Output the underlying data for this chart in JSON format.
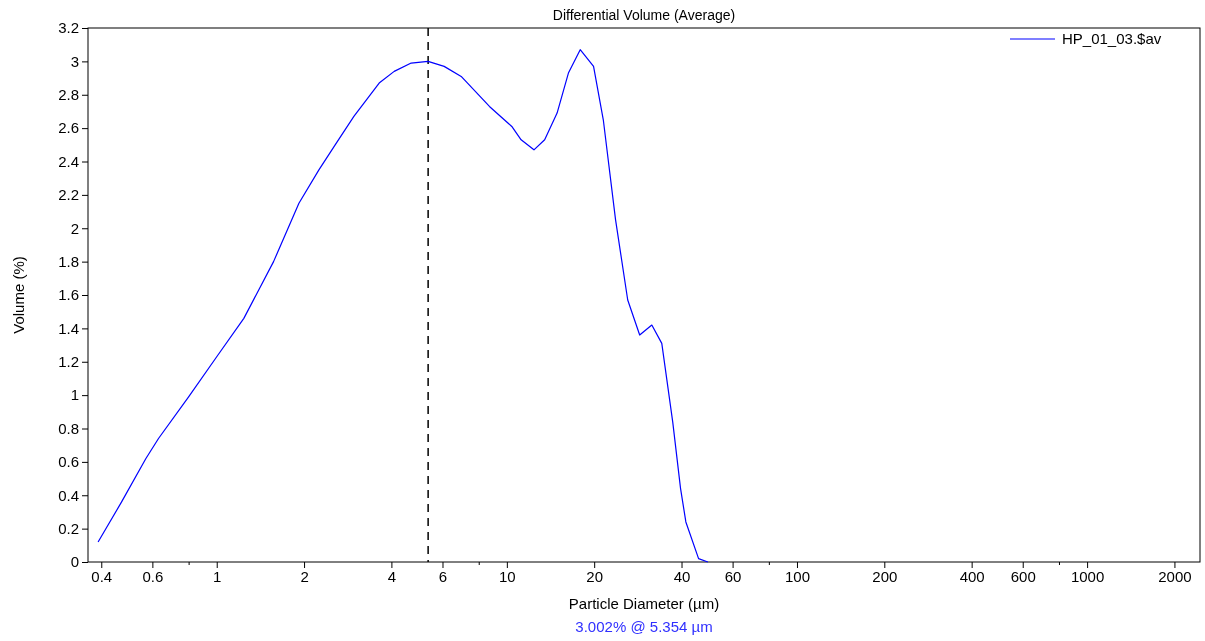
{
  "chart_data": {
    "type": "line",
    "title": "Differential Volume (Average)",
    "xlabel": "Particle Diameter (µm)",
    "ylabel": "Volume (%)",
    "log": "x",
    "legend": "top right",
    "marker": "none",
    "line_style": "solid",
    "grid": false,
    "xlim": [
      0.36,
      2450
    ],
    "ylim": [
      0,
      3.2
    ],
    "xticks": [
      0.4,
      0.6,
      {
        "value": 0.8,
        "label": null
      },
      1,
      2,
      4,
      6,
      {
        "value": 8,
        "label": null
      },
      10,
      20,
      40,
      60,
      {
        "value": 80,
        "label": null
      },
      100,
      200,
      400,
      600,
      {
        "value": 800,
        "label": null
      },
      1000,
      2000
    ],
    "yticks": [
      0,
      0.2,
      0.4,
      0.6,
      0.8,
      1,
      1.2,
      1.4,
      1.6,
      1.8,
      2,
      2.2,
      2.4,
      2.6,
      2.8,
      3,
      3.2
    ],
    "series": [
      {
        "name": "HP_01_03.$av",
        "color": "#0000ff",
        "x": [
          0.39,
          0.47,
          0.57,
          0.63,
          0.8,
          1.0,
          1.24,
          1.57,
          1.92,
          2.25,
          2.56,
          2.97,
          3.63,
          4.09,
          4.68,
          5.35,
          6.08,
          6.96,
          8.71,
          10.4,
          11.2,
          12.4,
          13.5,
          14.9,
          16.3,
          17.9,
          19.9,
          21.5,
          23.7,
          26.1,
          28.7,
          31.6,
          34.2,
          37.3,
          39.7,
          41.4,
          45.8,
          49.3
        ],
        "values": [
          0.12,
          0.36,
          0.62,
          0.74,
          0.99,
          1.23,
          1.46,
          1.8,
          2.15,
          2.35,
          2.5,
          2.67,
          2.87,
          2.94,
          2.99,
          3.0,
          2.97,
          2.91,
          2.73,
          2.61,
          2.53,
          2.47,
          2.53,
          2.69,
          2.93,
          3.07,
          2.97,
          2.65,
          2.05,
          1.57,
          1.36,
          1.42,
          1.31,
          0.84,
          0.44,
          0.24,
          0.02,
          0
        ]
      }
    ],
    "ref_lines": [
      {
        "axis": "x",
        "value": 5.354,
        "color": "#000000",
        "line_style": "dashed"
      }
    ],
    "annotations": [
      "3.002% @ 5.354 µm"
    ]
  }
}
